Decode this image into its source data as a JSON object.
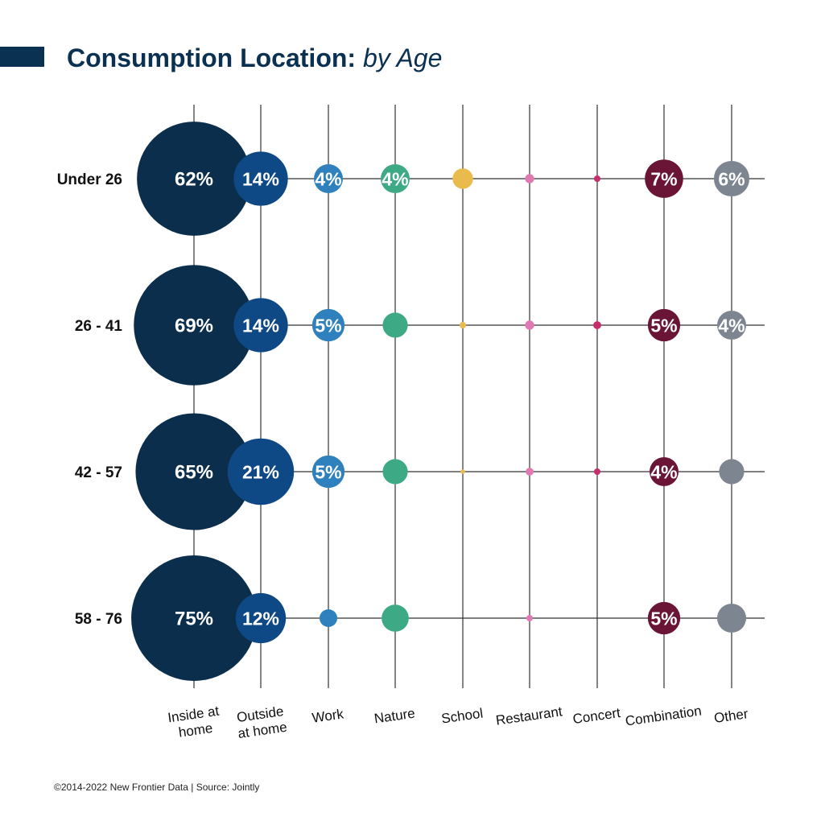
{
  "header": {
    "title_main": "Consumption Location:",
    "title_sub": "by Age"
  },
  "footer": {
    "text": "©2014-2022  New Frontier Data | Source: Jointly"
  },
  "chart_data": {
    "type": "bubble",
    "title": "Consumption Location: by Age",
    "categories": [
      {
        "lines": [
          "Inside at",
          "home"
        ],
        "color": "#0b2e4d"
      },
      {
        "lines": [
          "Outside",
          "at home"
        ],
        "color": "#0e4885"
      },
      {
        "lines": [
          "Work"
        ],
        "color": "#2f81bd"
      },
      {
        "lines": [
          "Nature"
        ],
        "color": "#3daa85"
      },
      {
        "lines": [
          "School"
        ],
        "color": "#e9bb4d"
      },
      {
        "lines": [
          "Restaurant"
        ],
        "color": "#e17ab3"
      },
      {
        "lines": [
          "Concert"
        ],
        "color": "#c42e6b"
      },
      {
        "lines": [
          "Combination"
        ],
        "color": "#6a1535"
      },
      {
        "lines": [
          "Other"
        ],
        "color": "#7c8590"
      }
    ],
    "rows": [
      {
        "label": "Under 26",
        "values": [
          62,
          14,
          4,
          4,
          2,
          0.4,
          0.2,
          7,
          6
        ],
        "labels": [
          "62%",
          "14%",
          "4%",
          "4%",
          "",
          "",
          "",
          "7%",
          "6%"
        ]
      },
      {
        "label": "26 - 41",
        "values": [
          69,
          14,
          5,
          3,
          0.2,
          0.4,
          0.3,
          5,
          4
        ],
        "labels": [
          "69%",
          "14%",
          "5%",
          "",
          "",
          "",
          "",
          "5%",
          "4%"
        ]
      },
      {
        "label": "42 - 57",
        "values": [
          65,
          21,
          5,
          3,
          0.1,
          0.3,
          0.2,
          4,
          3
        ],
        "labels": [
          "65%",
          "21%",
          "5%",
          "",
          "",
          "",
          "",
          "4%",
          ""
        ]
      },
      {
        "label": "58 - 76",
        "values": [
          75,
          12,
          1.5,
          3.5,
          0,
          0.2,
          0,
          5,
          4
        ],
        "labels": [
          "75%",
          "12%",
          "",
          "",
          "",
          "",
          "",
          "5%",
          ""
        ]
      }
    ]
  }
}
